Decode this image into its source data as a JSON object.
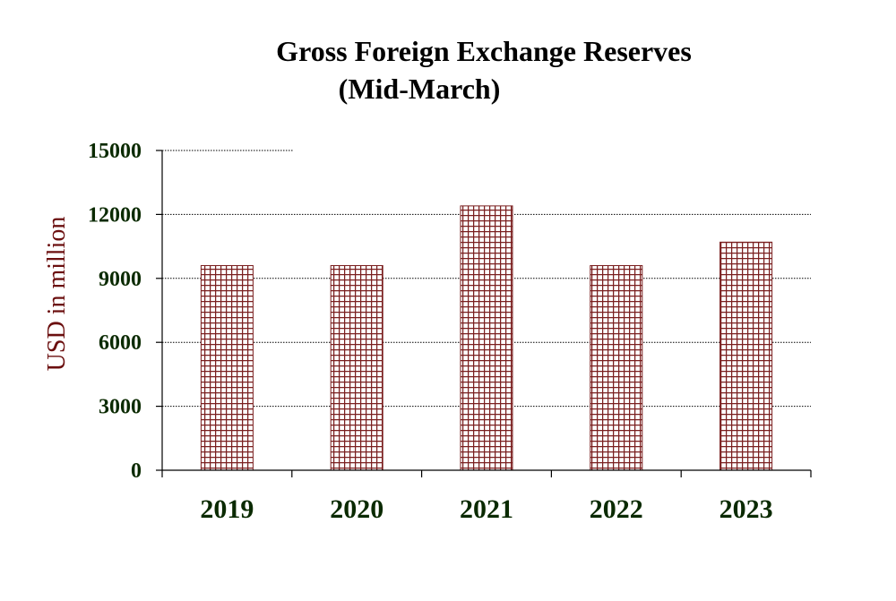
{
  "chart_data": {
    "type": "bar",
    "title": "Gross Foreign Exchange Reserves",
    "subtitle": "(Mid-March)",
    "xlabel": "",
    "ylabel": "USD in million",
    "categories": [
      "2019",
      "2020",
      "2021",
      "2022",
      "2023"
    ],
    "values": [
      9600,
      9600,
      12400,
      9600,
      10700
    ],
    "ylim": [
      0,
      15000
    ],
    "yticks": [
      0,
      3000,
      6000,
      9000,
      12000,
      15000
    ],
    "ytick_labels": [
      "0",
      "3000",
      "6000",
      "9000",
      "12000",
      "15000"
    ],
    "grid": true,
    "legend": "none"
  },
  "colors": {
    "bar_pattern": "#7a1f1f",
    "axis_text": "#0a2a00",
    "ylabel_text": "#6b0f0f"
  }
}
